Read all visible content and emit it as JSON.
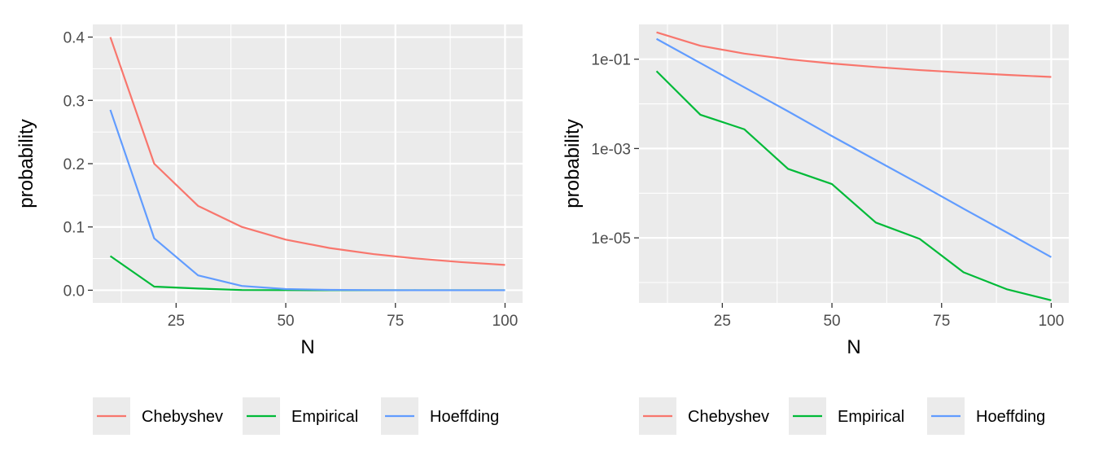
{
  "chart_data": [
    {
      "type": "line",
      "xlabel": "N",
      "ylabel": "probability",
      "yscale": "linear",
      "xlim": [
        6,
        104
      ],
      "ylim": [
        -0.02,
        0.42
      ],
      "x_ticks": [
        25,
        50,
        75,
        100
      ],
      "x_tick_labels": [
        "25",
        "50",
        "75",
        "100"
      ],
      "y_ticks": [
        0,
        0.1,
        0.2,
        0.3,
        0.4
      ],
      "y_tick_labels": [
        "0.0",
        "0.1",
        "0.2",
        "0.3",
        "0.4"
      ],
      "grid": true,
      "legend_position": "bottom",
      "x": [
        10,
        20,
        30,
        40,
        50,
        60,
        70,
        80,
        90,
        100
      ],
      "series": [
        {
          "name": "Chebyshev",
          "color": "#F8766D",
          "values": [
            0.4,
            0.2,
            0.1333,
            0.1,
            0.08,
            0.0667,
            0.0571,
            0.05,
            0.0444,
            0.04
          ]
        },
        {
          "name": "Empirical",
          "color": "#00BA38",
          "values": [
            0.054,
            0.0057,
            0.0027,
            0.00035,
            0.00016,
            2.2e-05,
            9.5e-06,
            1.7e-06,
            7e-07,
            4e-07
          ]
        },
        {
          "name": "Hoeffding",
          "color": "#619CFF",
          "values": [
            0.285,
            0.082,
            0.0235,
            0.0068,
            0.0019,
            0.00055,
            0.00016,
            4.5e-05,
            1.3e-05,
            3.7e-06
          ]
        }
      ]
    },
    {
      "type": "line",
      "xlabel": "N",
      "ylabel": "probability",
      "yscale": "log10",
      "xlim": [
        6,
        104
      ],
      "ylim": [
        3.5e-07,
        0.6
      ],
      "x_ticks": [
        25,
        50,
        75,
        100
      ],
      "x_tick_labels": [
        "25",
        "50",
        "75",
        "100"
      ],
      "y_ticks": [
        0.1,
        0.001,
        1e-05
      ],
      "y_tick_labels": [
        "1e-01",
        "1e-03",
        "1e-05"
      ],
      "grid": true,
      "legend_position": "bottom",
      "x": [
        10,
        20,
        30,
        40,
        50,
        60,
        70,
        80,
        90,
        100
      ],
      "series": [
        {
          "name": "Chebyshev",
          "color": "#F8766D",
          "values": [
            0.4,
            0.2,
            0.1333,
            0.1,
            0.08,
            0.0667,
            0.0571,
            0.05,
            0.0444,
            0.04
          ]
        },
        {
          "name": "Empirical",
          "color": "#00BA38",
          "values": [
            0.054,
            0.0057,
            0.0027,
            0.00035,
            0.00016,
            2.2e-05,
            9.5e-06,
            1.7e-06,
            7e-07,
            4e-07
          ]
        },
        {
          "name": "Hoeffding",
          "color": "#619CFF",
          "values": [
            0.285,
            0.082,
            0.0235,
            0.0068,
            0.0019,
            0.00055,
            0.00016,
            4.5e-05,
            1.3e-05,
            3.7e-06
          ]
        }
      ]
    }
  ]
}
